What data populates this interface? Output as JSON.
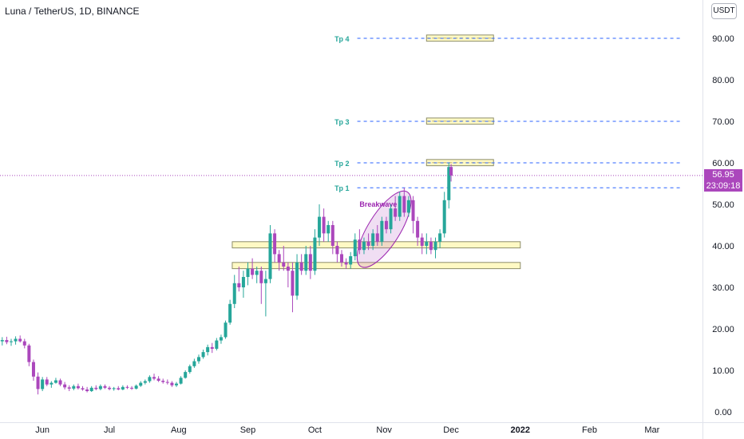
{
  "header": {
    "symbol_title": "Luna / TetherUS, 1D, BINANCE",
    "currency_button": "USDT"
  },
  "price_tag": {
    "last_price": "56.95",
    "countdown": "23:09:18"
  },
  "colors": {
    "up": "#26a69a",
    "down": "#ab47bc",
    "zone_fill": "#fff9c4",
    "zone_stroke": "#8d8d6a",
    "tp_line": "#2962ff",
    "tp_text": "#26a69a",
    "annotation": "#9c27b0"
  },
  "chart_data": {
    "type": "candlestick",
    "title": "Luna / TetherUS, 1D, BINANCE",
    "ylim": [
      0,
      95
    ],
    "y_ticks": [
      "0.00",
      "10.00",
      "20.00",
      "30.00",
      "40.00",
      "50.00",
      "60.00",
      "70.00",
      "80.00",
      "90.00"
    ],
    "x_ticks": [
      "Jun",
      "Jul",
      "Aug",
      "Sep",
      "Oct",
      "Nov",
      "Dec",
      "2022",
      "Feb",
      "Mar"
    ],
    "x_range": [
      "2021-05-13",
      "2022-03-20"
    ],
    "candles": [
      [
        "2021-05-14",
        17.0,
        18.0,
        16.0,
        17.3
      ],
      [
        "2021-05-16",
        17.3,
        18.1,
        16.3,
        16.8
      ],
      [
        "2021-05-18",
        16.8,
        17.6,
        15.9,
        17.0
      ],
      [
        "2021-05-20",
        17.0,
        18.2,
        16.2,
        17.6
      ],
      [
        "2021-05-22",
        17.6,
        18.4,
        16.7,
        17.0
      ],
      [
        "2021-05-24",
        17.0,
        17.6,
        15.3,
        16.0
      ],
      [
        "2021-05-26",
        16.0,
        16.4,
        11.0,
        12.0
      ],
      [
        "2021-05-28",
        12.0,
        12.6,
        7.5,
        8.5
      ],
      [
        "2021-05-30",
        8.5,
        9.5,
        4.2,
        5.5
      ],
      [
        "2021-06-01",
        5.5,
        8.4,
        5.0,
        7.8
      ],
      [
        "2021-06-03",
        7.8,
        8.4,
        6.2,
        6.6
      ],
      [
        "2021-06-05",
        6.6,
        7.4,
        5.8,
        7.0
      ],
      [
        "2021-06-07",
        7.0,
        8.2,
        6.8,
        7.6
      ],
      [
        "2021-06-09",
        7.6,
        8.0,
        6.2,
        6.6
      ],
      [
        "2021-06-11",
        6.6,
        7.2,
        5.4,
        5.9
      ],
      [
        "2021-06-13",
        5.9,
        6.4,
        5.0,
        5.6
      ],
      [
        "2021-06-15",
        5.6,
        6.6,
        5.2,
        6.2
      ],
      [
        "2021-06-17",
        6.2,
        6.8,
        5.4,
        5.7
      ],
      [
        "2021-06-19",
        5.7,
        6.2,
        5.1,
        5.4
      ],
      [
        "2021-06-21",
        5.4,
        6.0,
        4.7,
        5.0
      ],
      [
        "2021-06-23",
        5.0,
        6.2,
        4.8,
        5.8
      ],
      [
        "2021-06-25",
        5.8,
        6.4,
        5.2,
        5.5
      ],
      [
        "2021-06-27",
        5.5,
        6.6,
        5.2,
        6.2
      ],
      [
        "2021-06-29",
        6.2,
        6.6,
        5.5,
        5.8
      ],
      [
        "2021-07-01",
        5.8,
        6.2,
        5.2,
        5.5
      ],
      [
        "2021-07-03",
        5.5,
        6.0,
        5.1,
        5.7
      ],
      [
        "2021-07-05",
        5.7,
        6.2,
        5.2,
        5.4
      ],
      [
        "2021-07-07",
        5.4,
        6.4,
        5.2,
        6.0
      ],
      [
        "2021-07-09",
        6.0,
        6.4,
        5.5,
        5.8
      ],
      [
        "2021-07-11",
        5.8,
        6.2,
        5.3,
        5.6
      ],
      [
        "2021-07-13",
        5.6,
        6.6,
        5.4,
        6.3
      ],
      [
        "2021-07-15",
        6.3,
        7.4,
        6.0,
        7.0
      ],
      [
        "2021-07-17",
        7.0,
        7.8,
        6.6,
        7.4
      ],
      [
        "2021-07-19",
        7.4,
        8.8,
        7.0,
        8.4
      ],
      [
        "2021-07-21",
        8.4,
        9.2,
        7.6,
        8.0
      ],
      [
        "2021-07-23",
        8.0,
        8.6,
        7.2,
        7.5
      ],
      [
        "2021-07-25",
        7.5,
        8.0,
        6.8,
        7.2
      ],
      [
        "2021-07-27",
        7.2,
        7.8,
        6.6,
        7.0
      ],
      [
        "2021-07-29",
        7.0,
        7.4,
        6.0,
        6.4
      ],
      [
        "2021-07-31",
        6.4,
        7.2,
        6.0,
        6.8
      ],
      [
        "2021-08-02",
        6.8,
        8.6,
        6.6,
        8.2
      ],
      [
        "2021-08-04",
        8.2,
        10.0,
        8.0,
        9.6
      ],
      [
        "2021-08-06",
        9.6,
        11.4,
        9.2,
        11.0
      ],
      [
        "2021-08-08",
        11.0,
        12.8,
        10.6,
        12.2
      ],
      [
        "2021-08-10",
        12.2,
        13.8,
        11.6,
        13.2
      ],
      [
        "2021-08-12",
        13.2,
        15.0,
        12.8,
        14.4
      ],
      [
        "2021-08-14",
        14.4,
        16.2,
        13.6,
        15.6
      ],
      [
        "2021-08-16",
        15.6,
        16.6,
        14.2,
        15.2
      ],
      [
        "2021-08-18",
        15.2,
        17.8,
        14.8,
        17.2
      ],
      [
        "2021-08-20",
        17.2,
        18.6,
        16.4,
        18.0
      ],
      [
        "2021-08-22",
        18.0,
        22.0,
        17.6,
        21.5
      ],
      [
        "2021-08-24",
        21.5,
        27.0,
        21.0,
        26.0
      ],
      [
        "2021-08-26",
        26.0,
        33.0,
        25.0,
        31.0
      ],
      [
        "2021-08-28",
        31.0,
        35.0,
        29.0,
        30.0
      ],
      [
        "2021-08-30",
        30.0,
        34.0,
        27.5,
        32.5
      ],
      [
        "2021-09-01",
        32.5,
        36.0,
        30.5,
        34.5
      ],
      [
        "2021-09-03",
        34.5,
        37.0,
        32.0,
        33.0
      ],
      [
        "2021-09-05",
        33.0,
        35.0,
        31.0,
        34.0
      ],
      [
        "2021-09-07",
        34.0,
        35.0,
        26.0,
        31.0
      ],
      [
        "2021-09-09",
        31.0,
        34.0,
        23.0,
        32.0
      ],
      [
        "2021-09-11",
        32.0,
        45.0,
        31.0,
        43.0
      ],
      [
        "2021-09-13",
        43.0,
        44.0,
        36.0,
        38.0
      ],
      [
        "2021-09-15",
        38.0,
        39.0,
        34.0,
        36.0
      ],
      [
        "2021-09-17",
        36.0,
        40.0,
        34.0,
        35.0
      ],
      [
        "2021-09-19",
        35.0,
        36.0,
        30.0,
        34.0
      ],
      [
        "2021-09-21",
        34.0,
        36.0,
        24.0,
        28.0
      ],
      [
        "2021-09-23",
        28.0,
        38.0,
        27.0,
        36.0
      ],
      [
        "2021-09-25",
        36.0,
        38.0,
        33.0,
        34.0
      ],
      [
        "2021-09-27",
        34.0,
        40.0,
        33.0,
        38.0
      ],
      [
        "2021-09-29",
        38.0,
        40.0,
        32.0,
        34.0
      ],
      [
        "2021-10-01",
        34.0,
        44.0,
        33.0,
        42.0
      ],
      [
        "2021-10-03",
        42.0,
        50.0,
        40.0,
        47.0
      ],
      [
        "2021-10-05",
        47.0,
        49.0,
        41.0,
        43.0
      ],
      [
        "2021-10-07",
        43.0,
        46.0,
        41.0,
        45.0
      ],
      [
        "2021-10-09",
        45.0,
        46.0,
        38.0,
        40.0
      ],
      [
        "2021-10-11",
        40.0,
        41.0,
        36.0,
        38.0
      ],
      [
        "2021-10-13",
        38.0,
        39.0,
        35.0,
        36.0
      ],
      [
        "2021-10-15",
        36.0,
        37.0,
        34.5,
        35.5
      ],
      [
        "2021-10-17",
        35.5,
        38.5,
        34.5,
        37.5
      ],
      [
        "2021-10-19",
        37.5,
        43.0,
        36.5,
        41.5
      ],
      [
        "2021-10-21",
        41.5,
        44.0,
        38.0,
        39.0
      ],
      [
        "2021-10-23",
        39.0,
        42.0,
        38.0,
        41.0
      ],
      [
        "2021-10-25",
        41.0,
        43.0,
        39.0,
        40.0
      ],
      [
        "2021-10-27",
        40.0,
        44.0,
        39.0,
        43.0
      ],
      [
        "2021-10-29",
        43.0,
        45.0,
        40.0,
        41.0
      ],
      [
        "2021-10-31",
        41.0,
        47.0,
        40.0,
        46.0
      ],
      [
        "2021-11-02",
        46.0,
        47.0,
        43.0,
        44.0
      ],
      [
        "2021-11-04",
        44.0,
        50.0,
        43.0,
        49.0
      ],
      [
        "2021-11-06",
        49.0,
        52.0,
        46.0,
        47.0
      ],
      [
        "2021-11-08",
        47.0,
        53.0,
        46.0,
        52.0
      ],
      [
        "2021-11-10",
        52.0,
        54.0,
        47.0,
        48.0
      ],
      [
        "2021-11-12",
        48.0,
        52.0,
        47.0,
        51.0
      ],
      [
        "2021-11-14",
        51.0,
        52.0,
        43.0,
        46.0
      ],
      [
        "2021-11-16",
        46.0,
        47.0,
        40.0,
        42.0
      ],
      [
        "2021-11-18",
        42.0,
        43.0,
        38.0,
        40.0
      ],
      [
        "2021-11-20",
        40.0,
        43.0,
        38.0,
        41.0
      ],
      [
        "2021-11-22",
        41.0,
        42.0,
        38.0,
        39.0
      ],
      [
        "2021-11-24",
        39.0,
        42.0,
        37.0,
        41.0
      ],
      [
        "2021-11-26",
        41.0,
        44.0,
        39.5,
        43.0
      ],
      [
        "2021-11-28",
        43.0,
        53.0,
        42.0,
        51.0
      ],
      [
        "2021-11-30",
        51.0,
        60.0,
        49.0,
        59.0
      ],
      [
        "2021-12-01",
        59.0,
        59.7,
        55.5,
        56.95
      ]
    ],
    "horizontal_lines": [
      {
        "label": "Tp 1",
        "value": 54
      },
      {
        "label": "Tp 2",
        "value": 60
      },
      {
        "label": "Tp 3",
        "value": 70
      },
      {
        "label": "Tp 4",
        "value": 90
      }
    ],
    "last_price_line": 56.95,
    "zones": [
      {
        "from_date": "2021-08-25",
        "to_date": "2022-01-01",
        "low": 39.5,
        "high": 41.0
      },
      {
        "from_date": "2021-08-25",
        "to_date": "2022-01-01",
        "low": 34.5,
        "high": 36.0
      },
      {
        "from_date": "2021-11-20",
        "to_date": "2021-12-20",
        "low": 59.3,
        "high": 60.8
      },
      {
        "from_date": "2021-11-20",
        "to_date": "2021-12-20",
        "low": 69.3,
        "high": 70.8
      },
      {
        "from_date": "2021-11-20",
        "to_date": "2021-12-20",
        "low": 89.3,
        "high": 90.8
      }
    ],
    "annotations": [
      {
        "text": "Breakwave"
      }
    ]
  }
}
